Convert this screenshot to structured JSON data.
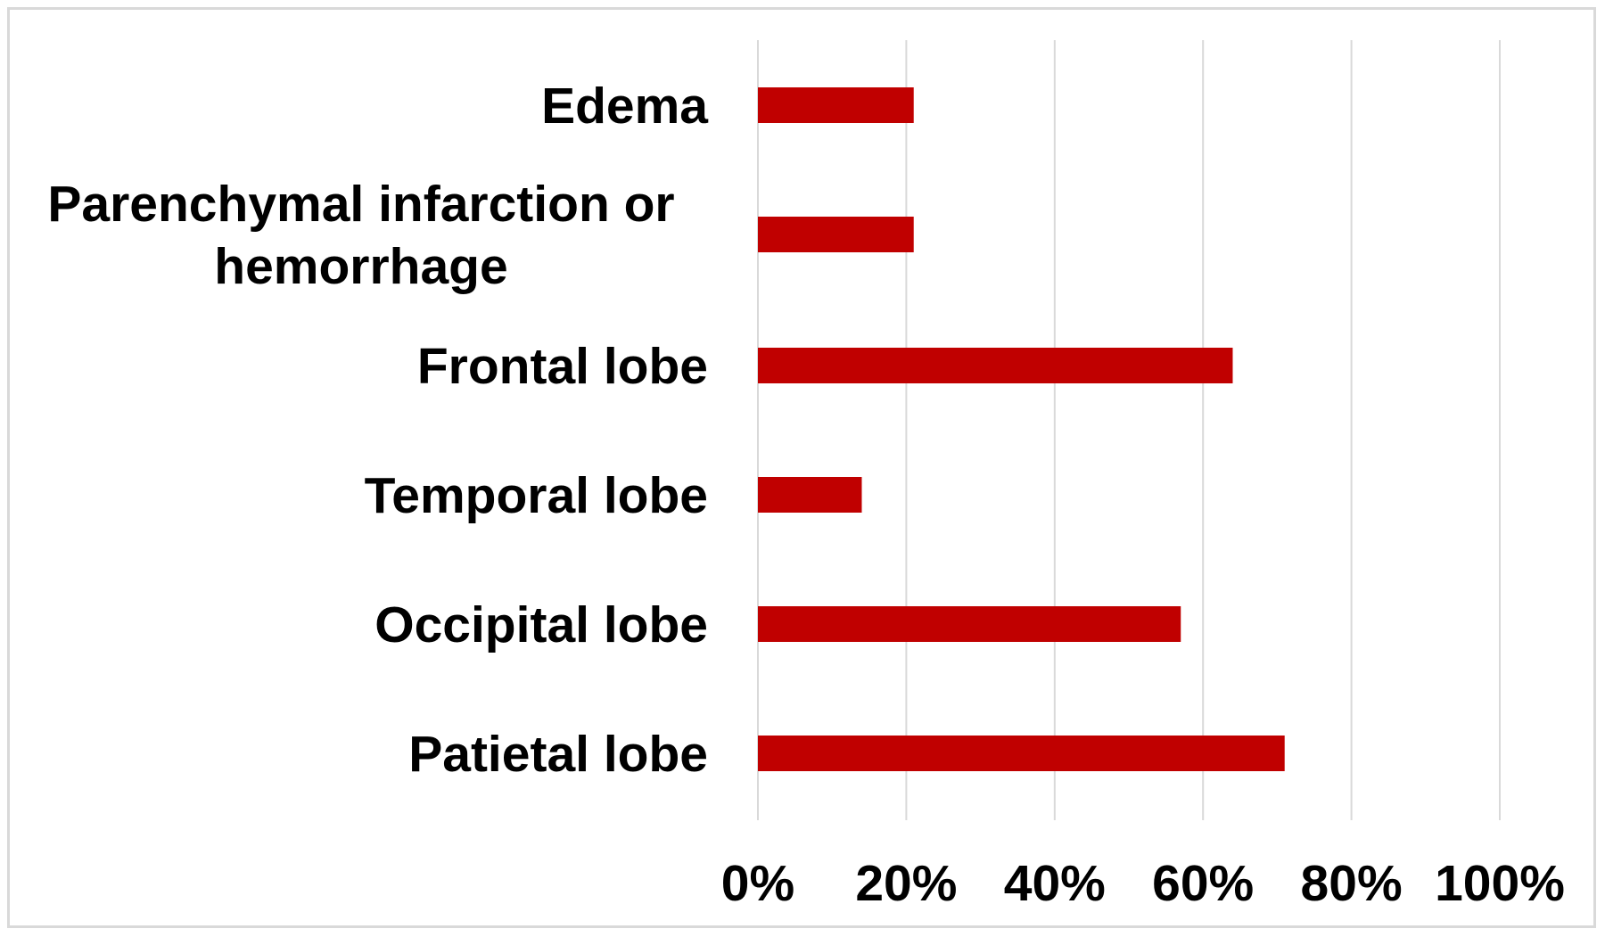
{
  "chart_data": {
    "type": "bar",
    "orientation": "horizontal",
    "categories": [
      [
        "Edema"
      ],
      [
        "Parenchymal infarction or",
        "hemorrhage"
      ],
      [
        "Frontal lobe"
      ],
      [
        "Temporal lobe"
      ],
      [
        "Occipital lobe"
      ],
      [
        "Patietal lobe"
      ]
    ],
    "values": [
      0.21,
      0.21,
      0.64,
      0.14,
      0.57,
      0.71
    ],
    "xlim": [
      0,
      1
    ],
    "x_ticks": [
      "0%",
      "20%",
      "40%",
      "60%",
      "80%",
      "100%"
    ],
    "grid": "vertical",
    "title": "",
    "xlabel": "",
    "ylabel": "",
    "colors": {
      "bar": "#c00000",
      "grid": "#d9d9d9",
      "frame": "#d9d9d9",
      "text": "#000000"
    }
  }
}
